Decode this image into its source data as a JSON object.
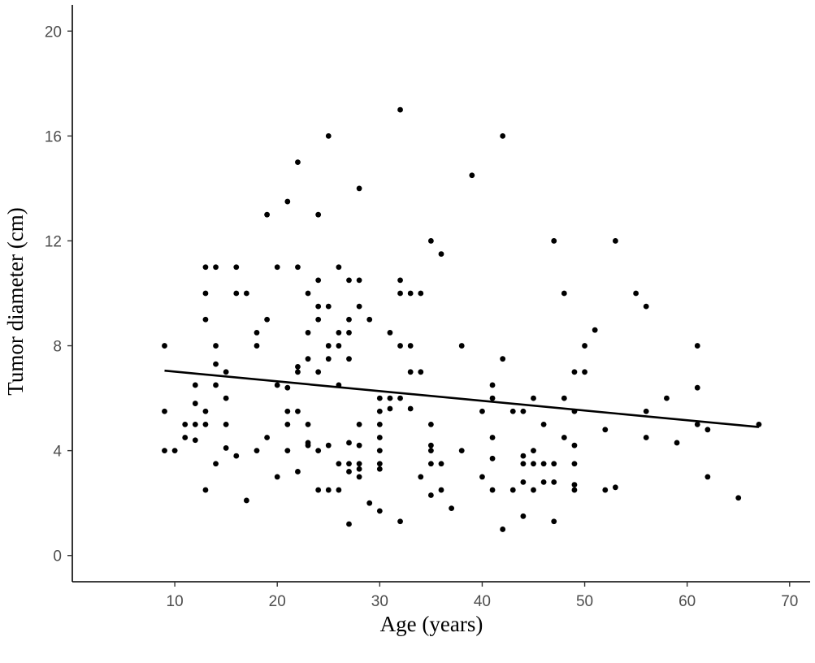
{
  "chart_data": {
    "type": "scatter",
    "title": "",
    "xlabel": "Age (years)",
    "ylabel": "Tumor diameter (cm)",
    "xlim": [
      0,
      72
    ],
    "ylim": [
      -1,
      21
    ],
    "xticks": [
      10,
      20,
      30,
      40,
      50,
      60,
      70
    ],
    "yticks": [
      0,
      4,
      8,
      12,
      16,
      20
    ],
    "grid": false,
    "legend": "none",
    "point_color": "#000000",
    "series": [
      {
        "type": "scatter",
        "points": [
          [
            9,
            8.0
          ],
          [
            9,
            5.5
          ],
          [
            9,
            4.0
          ],
          [
            10,
            4.0
          ],
          [
            11,
            5.0
          ],
          [
            11,
            4.5
          ],
          [
            12,
            6.5
          ],
          [
            12,
            5.8
          ],
          [
            12,
            5.0
          ],
          [
            12,
            4.4
          ],
          [
            13,
            11.0
          ],
          [
            13,
            10.0
          ],
          [
            13,
            9.0
          ],
          [
            13,
            5.5
          ],
          [
            13,
            5.0
          ],
          [
            13,
            2.5
          ],
          [
            14,
            11.0
          ],
          [
            14,
            8.0
          ],
          [
            14,
            7.3
          ],
          [
            14,
            6.5
          ],
          [
            14,
            3.5
          ],
          [
            15,
            7.0
          ],
          [
            15,
            6.0
          ],
          [
            15,
            5.0
          ],
          [
            15,
            4.1
          ],
          [
            16,
            11.0
          ],
          [
            16,
            10.0
          ],
          [
            16,
            3.8
          ],
          [
            17,
            10.0
          ],
          [
            17,
            2.1
          ],
          [
            18,
            8.5
          ],
          [
            18,
            8.0
          ],
          [
            18,
            4.0
          ],
          [
            19,
            13.0
          ],
          [
            19,
            9.0
          ],
          [
            19,
            4.5
          ],
          [
            20,
            11.0
          ],
          [
            20,
            6.5
          ],
          [
            20,
            3.0
          ],
          [
            21,
            13.5
          ],
          [
            21,
            6.4
          ],
          [
            21,
            5.5
          ],
          [
            21,
            5.0
          ],
          [
            21,
            4.0
          ],
          [
            22,
            15.0
          ],
          [
            22,
            11.0
          ],
          [
            22,
            7.2
          ],
          [
            22,
            7.0
          ],
          [
            22,
            5.5
          ],
          [
            22,
            3.2
          ],
          [
            23,
            10.0
          ],
          [
            23,
            8.5
          ],
          [
            23,
            7.5
          ],
          [
            23,
            5.0
          ],
          [
            23,
            4.3
          ],
          [
            23,
            4.2
          ],
          [
            24,
            13.0
          ],
          [
            24,
            10.5
          ],
          [
            24,
            9.5
          ],
          [
            24,
            9.0
          ],
          [
            24,
            7.0
          ],
          [
            24,
            4.0
          ],
          [
            24,
            2.5
          ],
          [
            25,
            16.0
          ],
          [
            25,
            9.5
          ],
          [
            25,
            8.0
          ],
          [
            25,
            7.5
          ],
          [
            25,
            4.2
          ],
          [
            25,
            2.5
          ],
          [
            26,
            11.0
          ],
          [
            26,
            8.5
          ],
          [
            26,
            8.0
          ],
          [
            26,
            6.5
          ],
          [
            26,
            3.5
          ],
          [
            26,
            2.5
          ],
          [
            27,
            10.5
          ],
          [
            27,
            9.0
          ],
          [
            27,
            8.5
          ],
          [
            27,
            7.5
          ],
          [
            27,
            4.3
          ],
          [
            27,
            3.5
          ],
          [
            27,
            3.2
          ],
          [
            27,
            1.2
          ],
          [
            28,
            14.0
          ],
          [
            28,
            10.5
          ],
          [
            28,
            9.5
          ],
          [
            28,
            5.0
          ],
          [
            28,
            4.2
          ],
          [
            28,
            3.5
          ],
          [
            28,
            3.3
          ],
          [
            28,
            3.0
          ],
          [
            29,
            9.0
          ],
          [
            29,
            2.0
          ],
          [
            30,
            6.0
          ],
          [
            30,
            5.5
          ],
          [
            30,
            5.0
          ],
          [
            30,
            4.5
          ],
          [
            30,
            4.0
          ],
          [
            30,
            3.5
          ],
          [
            30,
            3.3
          ],
          [
            30,
            1.7
          ],
          [
            31,
            8.5
          ],
          [
            31,
            6.0
          ],
          [
            31,
            5.6
          ],
          [
            32,
            17.0
          ],
          [
            32,
            10.5
          ],
          [
            32,
            10.0
          ],
          [
            32,
            8.0
          ],
          [
            32,
            6.0
          ],
          [
            32,
            1.3
          ],
          [
            33,
            10.0
          ],
          [
            33,
            8.0
          ],
          [
            33,
            7.0
          ],
          [
            33,
            5.6
          ],
          [
            34,
            10.0
          ],
          [
            34,
            7.0
          ],
          [
            34,
            3.0
          ],
          [
            35,
            12.0
          ],
          [
            35,
            5.0
          ],
          [
            35,
            4.2
          ],
          [
            35,
            4.0
          ],
          [
            35,
            3.5
          ],
          [
            35,
            2.3
          ],
          [
            36,
            11.5
          ],
          [
            36,
            3.5
          ],
          [
            36,
            2.5
          ],
          [
            37,
            1.8
          ],
          [
            38,
            8.0
          ],
          [
            38,
            4.0
          ],
          [
            39,
            14.5
          ],
          [
            40,
            5.5
          ],
          [
            40,
            3.0
          ],
          [
            41,
            6.5
          ],
          [
            41,
            6.0
          ],
          [
            41,
            4.5
          ],
          [
            41,
            3.7
          ],
          [
            41,
            2.5
          ],
          [
            42,
            16.0
          ],
          [
            42,
            7.5
          ],
          [
            42,
            1.0
          ],
          [
            43,
            5.5
          ],
          [
            43,
            2.5
          ],
          [
            44,
            5.5
          ],
          [
            44,
            3.8
          ],
          [
            44,
            3.5
          ],
          [
            44,
            2.8
          ],
          [
            44,
            1.5
          ],
          [
            45,
            6.0
          ],
          [
            45,
            4.0
          ],
          [
            45,
            3.5
          ],
          [
            45,
            2.5
          ],
          [
            46,
            5.0
          ],
          [
            46,
            3.5
          ],
          [
            46,
            2.8
          ],
          [
            47,
            12.0
          ],
          [
            47,
            3.5
          ],
          [
            47,
            2.8
          ],
          [
            47,
            1.3
          ],
          [
            48,
            10.0
          ],
          [
            48,
            6.0
          ],
          [
            48,
            4.5
          ],
          [
            49,
            7.0
          ],
          [
            49,
            5.5
          ],
          [
            49,
            4.2
          ],
          [
            49,
            3.5
          ],
          [
            49,
            2.7
          ],
          [
            49,
            2.5
          ],
          [
            50,
            8.0
          ],
          [
            50,
            7.0
          ],
          [
            51,
            8.6
          ],
          [
            52,
            4.8
          ],
          [
            52,
            2.5
          ],
          [
            53,
            12.0
          ],
          [
            53,
            2.6
          ],
          [
            55,
            10.0
          ],
          [
            56,
            9.5
          ],
          [
            56,
            5.5
          ],
          [
            56,
            4.5
          ],
          [
            58,
            6.0
          ],
          [
            59,
            4.3
          ],
          [
            61,
            8.0
          ],
          [
            61,
            6.4
          ],
          [
            61,
            5.0
          ],
          [
            62,
            4.8
          ],
          [
            62,
            3.0
          ],
          [
            65,
            2.2
          ],
          [
            67,
            5.0
          ]
        ]
      },
      {
        "type": "line",
        "points": [
          [
            9,
            7.05
          ],
          [
            67,
            4.9
          ]
        ]
      }
    ]
  }
}
